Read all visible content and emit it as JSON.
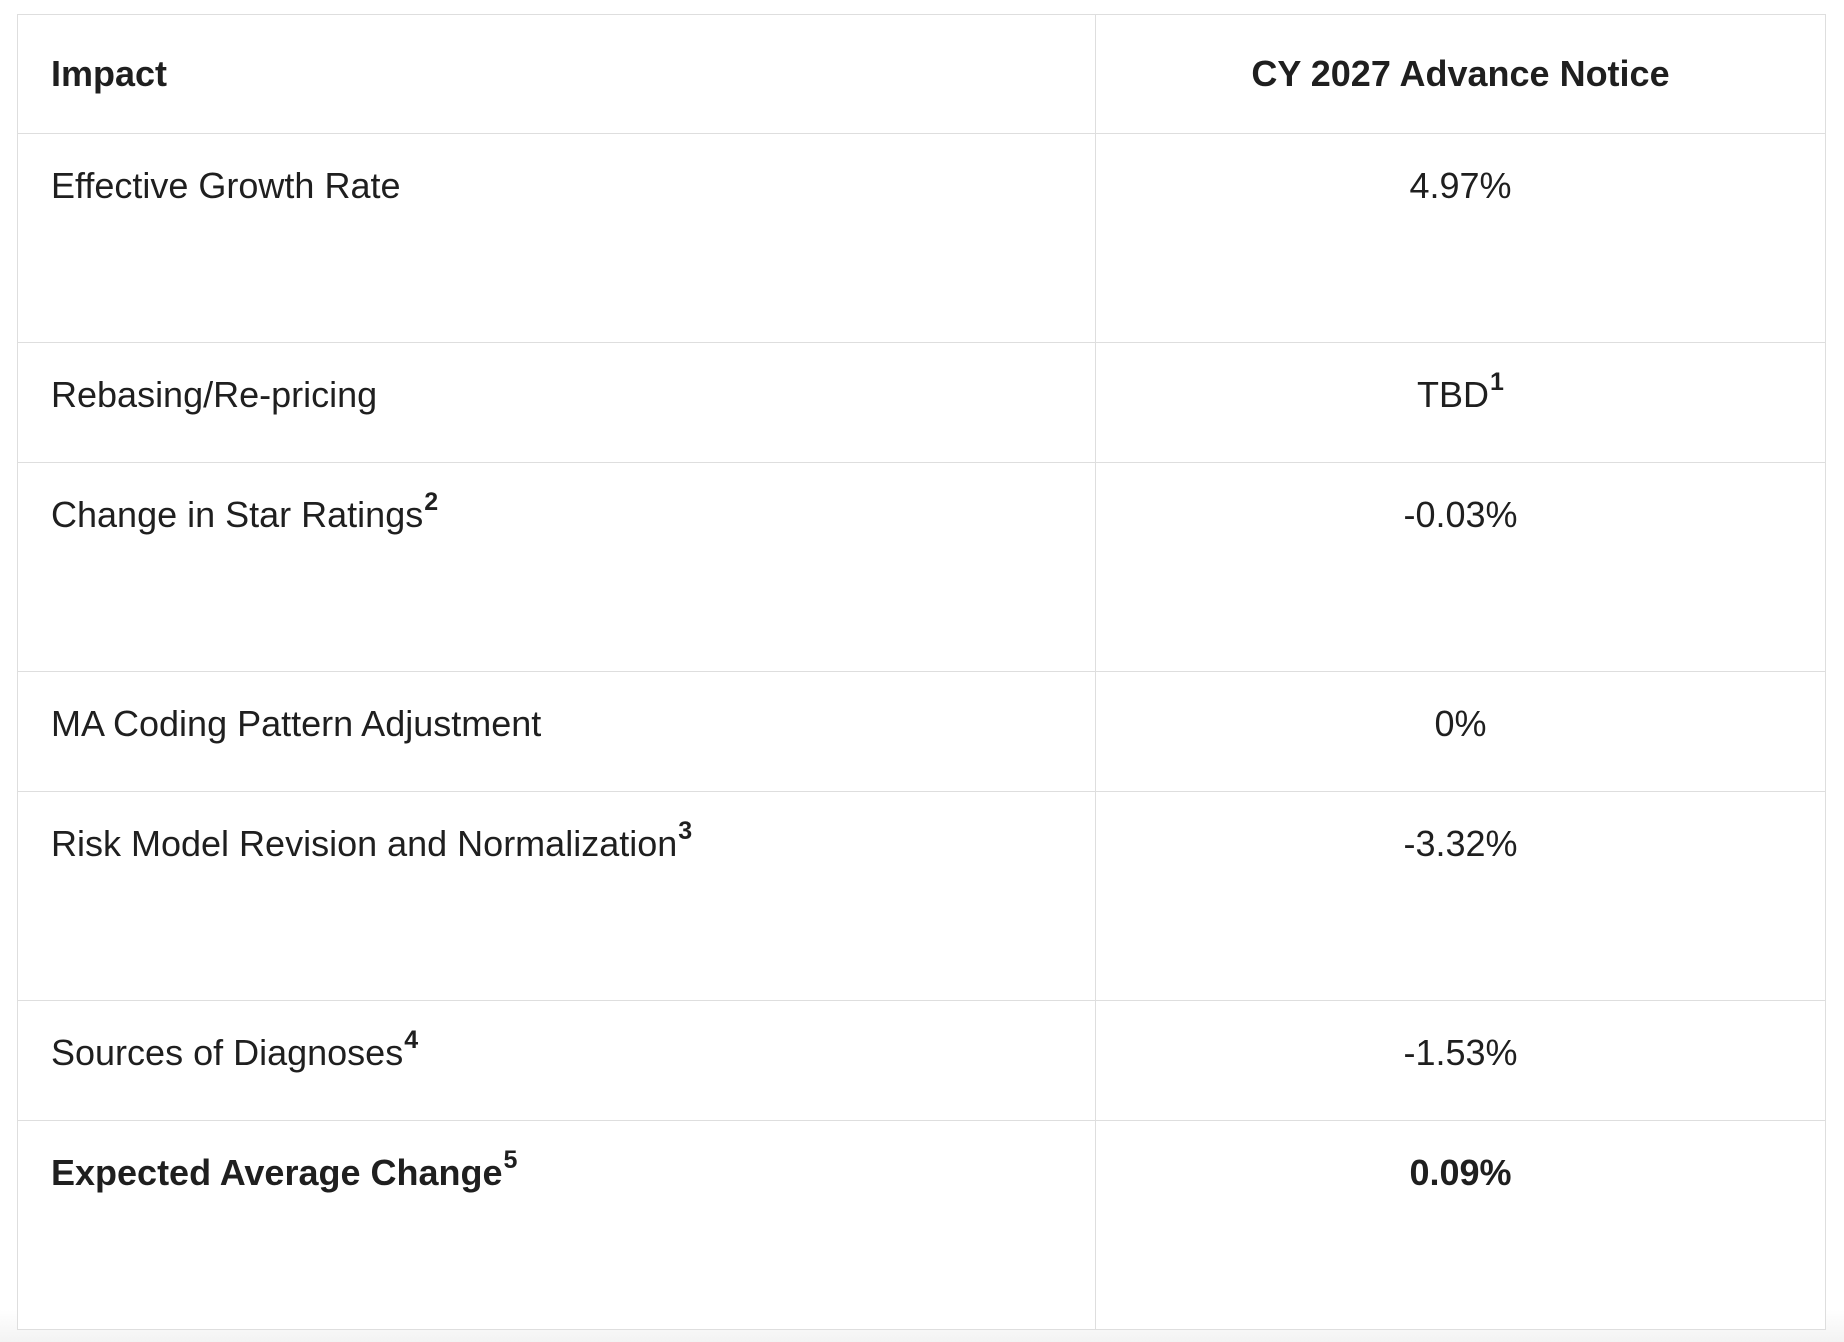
{
  "table": {
    "headers": {
      "impact": "Impact",
      "value": "CY 2027 Advance Notice"
    },
    "rows": [
      {
        "label": "Effective Growth Rate",
        "label_sup": "",
        "value": "4.97%",
        "value_sup": ""
      },
      {
        "label": "Rebasing/Re-pricing",
        "label_sup": "",
        "value": "TBD",
        "value_sup": "1"
      },
      {
        "label": "Change in Star Ratings",
        "label_sup": "2",
        "value": "-0.03%",
        "value_sup": ""
      },
      {
        "label": "MA Coding Pattern Adjustment",
        "label_sup": "",
        "value": "0%",
        "value_sup": ""
      },
      {
        "label": "Risk Model Revision and Normalization",
        "label_sup": "3",
        "value": "-3.32%",
        "value_sup": ""
      },
      {
        "label": "Sources of Diagnoses",
        "label_sup": "4",
        "value": "-1.53%",
        "value_sup": ""
      },
      {
        "label": "Expected Average Change",
        "label_sup": "5",
        "value": "0.09%",
        "value_sup": ""
      }
    ]
  }
}
